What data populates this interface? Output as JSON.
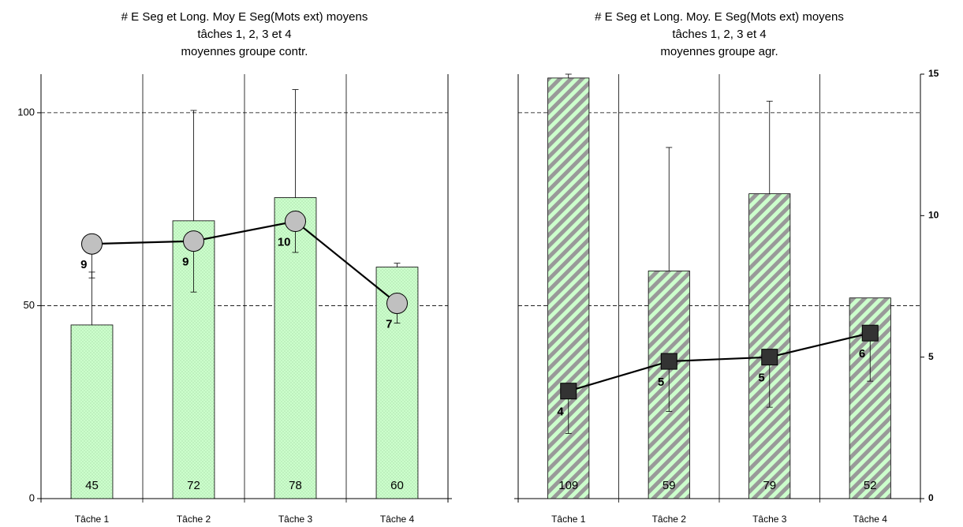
{
  "chart_data": [
    {
      "type": "bar",
      "title": [
        "# E Seg et Long. Moy E Seg(Mots ext) moyens",
        "tâches 1, 2, 3 et 4",
        "moyennes groupe contr."
      ],
      "categories": [
        "Tâche 1",
        "Tâche 2",
        "Tâche 3",
        "Tâche 4"
      ],
      "series": [
        {
          "type": "bar",
          "color": "#ccffcc",
          "pattern": "dots",
          "values": [
            45,
            72,
            78,
            60
          ],
          "errors": [
            13.7,
            28.6,
            28,
            1
          ]
        },
        {
          "type": "line",
          "axis": "y2",
          "color": "#c0c0c0",
          "marker": "circle",
          "values": [
            9.0,
            9.1,
            9.8,
            6.9
          ],
          "value_labels": [
            "9",
            "9",
            "10",
            "7"
          ],
          "errors": [
            1.2,
            1.8,
            1.1,
            0.7
          ]
        }
      ],
      "ylim": [
        0,
        110
      ],
      "yticks": [
        0,
        50,
        100
      ],
      "show_ytick_labels": true,
      "y2lim": [
        0,
        15
      ],
      "y2ticks": [],
      "grid": true
    },
    {
      "type": "bar",
      "title": [
        "# E Seg et Long. Moy. E Seg(Mots ext) moyens",
        "tâches 1, 2, 3 et 4",
        "moyennes groupe agr."
      ],
      "categories": [
        "Tâche 1",
        "Tâche 2",
        "Tâche 3",
        "Tâche 4"
      ],
      "series": [
        {
          "type": "bar",
          "color": "#ccffcc",
          "pattern": "stripes",
          "values": [
            109,
            59,
            79,
            52
          ],
          "errors": [
            1,
            32,
            24,
            null
          ]
        },
        {
          "type": "line",
          "axis": "y2",
          "color": "#333333",
          "marker": "square",
          "values": [
            3.8,
            4.85,
            5.0,
            5.85
          ],
          "value_labels": [
            "4",
            "5",
            "5",
            "6"
          ],
          "errors": [
            1.5,
            1.77,
            1.77,
            1.7
          ]
        }
      ],
      "ylim": [
        0,
        110
      ],
      "yticks": [
        0,
        50,
        100
      ],
      "show_ytick_labels": false,
      "y2lim": [
        0,
        15
      ],
      "y2ticks": [
        0,
        5,
        10,
        15
      ],
      "grid": true
    }
  ]
}
